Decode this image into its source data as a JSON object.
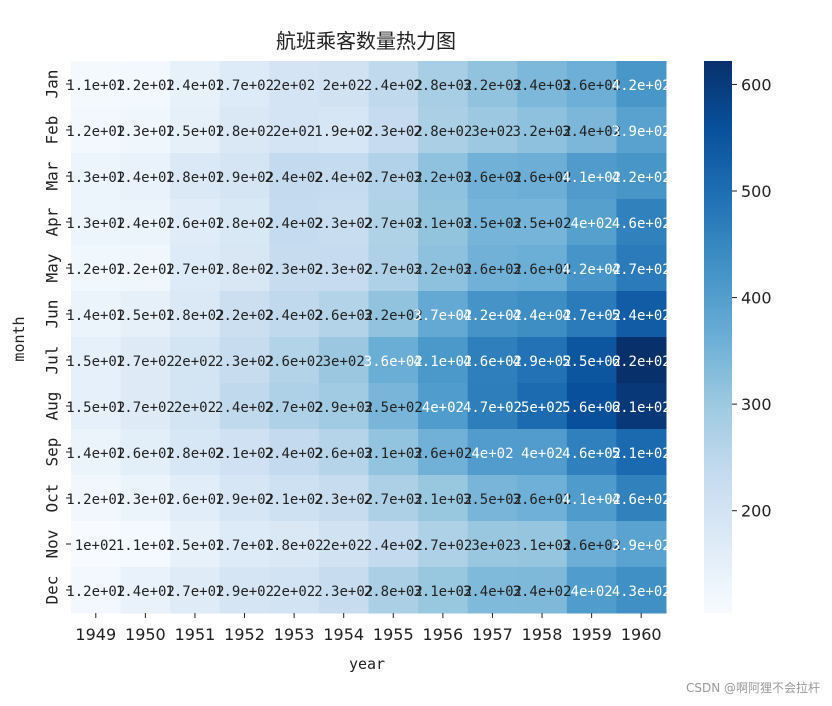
{
  "chart_data": {
    "type": "heatmap",
    "title": "航班乘客数量热力图",
    "xlabel": "year",
    "ylabel": "month",
    "x": [
      "1949",
      "1950",
      "1951",
      "1952",
      "1953",
      "1954",
      "1955",
      "1956",
      "1957",
      "1958",
      "1959",
      "1960"
    ],
    "y": [
      "Jan",
      "Feb",
      "Mar",
      "Apr",
      "May",
      "Jun",
      "Jul",
      "Aug",
      "Sep",
      "Oct",
      "Nov",
      "Dec"
    ],
    "values": [
      [
        112,
        115,
        145,
        171,
        196,
        204,
        242,
        284,
        315,
        340,
        360,
        417
      ],
      [
        118,
        126,
        150,
        180,
        196,
        188,
        233,
        277,
        301,
        318,
        342,
        391
      ],
      [
        132,
        141,
        178,
        193,
        236,
        235,
        267,
        317,
        356,
        362,
        406,
        419
      ],
      [
        129,
        135,
        163,
        181,
        235,
        227,
        269,
        313,
        348,
        348,
        396,
        461
      ],
      [
        121,
        125,
        172,
        183,
        229,
        234,
        270,
        318,
        355,
        363,
        420,
        472
      ],
      [
        135,
        149,
        178,
        218,
        243,
        264,
        315,
        374,
        422,
        435,
        472,
        535
      ],
      [
        148,
        170,
        199,
        230,
        264,
        302,
        364,
        413,
        465,
        491,
        548,
        622
      ],
      [
        148,
        170,
        199,
        242,
        272,
        293,
        347,
        405,
        467,
        505,
        559,
        606
      ],
      [
        136,
        158,
        184,
        209,
        237,
        259,
        312,
        355,
        404,
        404,
        463,
        508
      ],
      [
        119,
        133,
        162,
        191,
        211,
        229,
        274,
        306,
        347,
        359,
        407,
        461
      ],
      [
        104,
        114,
        146,
        172,
        180,
        203,
        237,
        271,
        305,
        310,
        362,
        390
      ],
      [
        118,
        140,
        166,
        194,
        201,
        229,
        278,
        306,
        336,
        337,
        405,
        432
      ]
    ],
    "annotations": [
      [
        "1.1e+02",
        "1.2e+02",
        "1.4e+02",
        "1.7e+02",
        "2e+02",
        "2e+02",
        "2.4e+02",
        "2.8e+02",
        "3.2e+02",
        "3.4e+02",
        "3.6e+02",
        "4.2e+02"
      ],
      [
        "1.2e+02",
        "1.3e+02",
        "1.5e+02",
        "1.8e+02",
        "2e+02",
        "1.9e+02",
        "2.3e+02",
        "2.8e+02",
        "3e+02",
        "3.2e+02",
        "3.4e+02",
        "3.9e+02"
      ],
      [
        "1.3e+02",
        "1.4e+02",
        "1.8e+02",
        "1.9e+02",
        "2.4e+02",
        "2.4e+02",
        "2.7e+02",
        "3.2e+02",
        "3.6e+02",
        "3.6e+02",
        "4.1e+02",
        "4.2e+02"
      ],
      [
        "1.3e+02",
        "1.4e+02",
        "1.6e+02",
        "1.8e+02",
        "2.4e+02",
        "2.3e+02",
        "2.7e+02",
        "3.1e+02",
        "3.5e+02",
        "3.5e+02",
        "4e+02",
        "4.6e+02"
      ],
      [
        "1.2e+02",
        "1.2e+02",
        "1.7e+02",
        "1.8e+02",
        "2.3e+02",
        "2.3e+02",
        "2.7e+02",
        "3.2e+02",
        "3.6e+02",
        "3.6e+02",
        "4.2e+02",
        "4.7e+02"
      ],
      [
        "1.4e+02",
        "1.5e+02",
        "1.8e+02",
        "2.2e+02",
        "2.4e+02",
        "2.6e+02",
        "3.2e+02",
        "3.7e+02",
        "4.2e+02",
        "4.4e+02",
        "4.7e+02",
        "5.4e+02"
      ],
      [
        "1.5e+02",
        "1.7e+02",
        "2e+02",
        "2.3e+02",
        "2.6e+02",
        "3e+02",
        "3.6e+02",
        "4.1e+02",
        "4.6e+02",
        "4.9e+02",
        "5.5e+02",
        "6.2e+02"
      ],
      [
        "1.5e+02",
        "1.7e+02",
        "2e+02",
        "2.4e+02",
        "2.7e+02",
        "2.9e+02",
        "3.5e+02",
        "4e+02",
        "4.7e+02",
        "5e+02",
        "5.6e+02",
        "6.1e+02"
      ],
      [
        "1.4e+02",
        "1.6e+02",
        "1.8e+02",
        "2.1e+02",
        "2.4e+02",
        "2.6e+02",
        "3.1e+02",
        "3.6e+02",
        "4e+02",
        "4e+02",
        "4.6e+02",
        "5.1e+02"
      ],
      [
        "1.2e+02",
        "1.3e+02",
        "1.6e+02",
        "1.9e+02",
        "2.1e+02",
        "2.3e+02",
        "2.7e+02",
        "3.1e+02",
        "3.5e+02",
        "3.6e+02",
        "4.1e+02",
        "4.6e+02"
      ],
      [
        "1e+02",
        "1.1e+02",
        "1.5e+02",
        "1.7e+02",
        "1.8e+02",
        "2e+02",
        "2.4e+02",
        "2.7e+02",
        "3e+02",
        "3.1e+02",
        "3.6e+02",
        "3.9e+02"
      ],
      [
        "1.2e+02",
        "1.4e+02",
        "1.7e+02",
        "1.9e+02",
        "2e+02",
        "2.3e+02",
        "2.8e+02",
        "3.1e+02",
        "3.4e+02",
        "3.4e+02",
        "4e+02",
        "4.3e+02"
      ]
    ],
    "colormap": "Blues",
    "colorbar": {
      "vmin": 104,
      "vmax": 622,
      "ticks": [
        200,
        300,
        400,
        500,
        600
      ]
    },
    "grid": false
  },
  "watermark": "CSDN @啊阿狸不会拉杆"
}
